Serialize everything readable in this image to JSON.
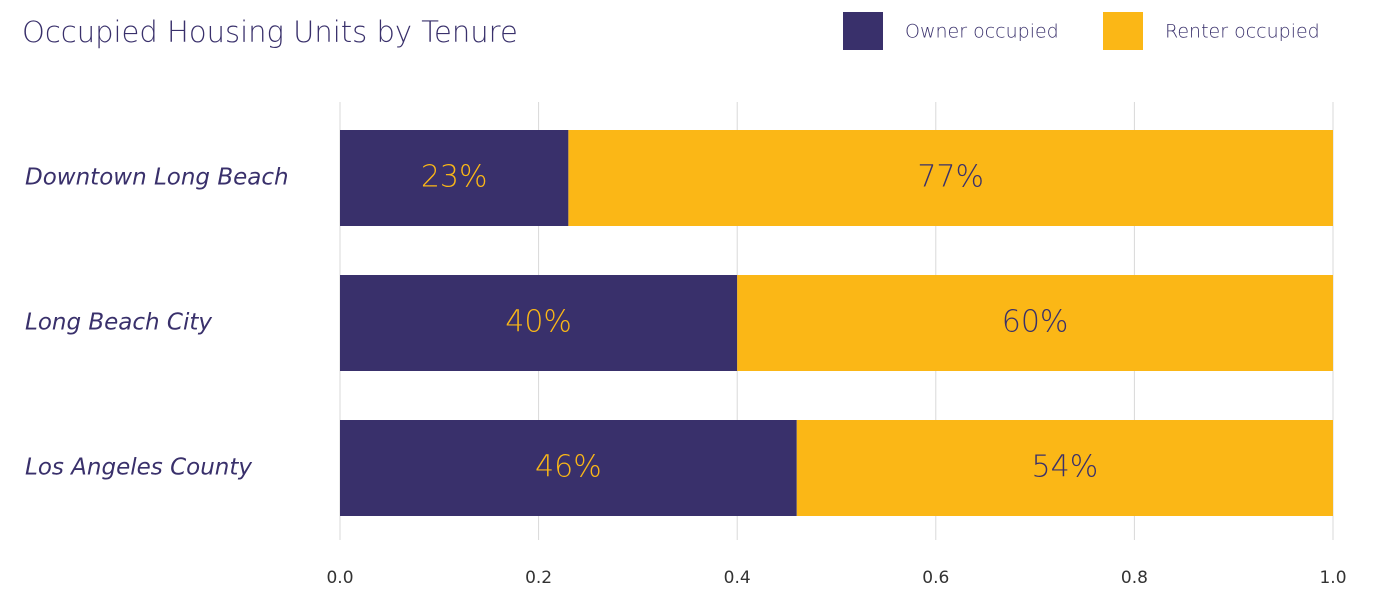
{
  "chart_data": {
    "type": "stacked-bar-horizontal",
    "title": "Occupied Housing Units by Tenure",
    "categories": [
      "Downtown Long Beach",
      "Long Beach City",
      "Los Angeles County"
    ],
    "series": [
      {
        "name": "Owner occupied",
        "color": "#39306b",
        "label_color": "#fbb716",
        "values": [
          0.23,
          0.4,
          0.46
        ],
        "value_labels": [
          "23%",
          "40%",
          "46%"
        ]
      },
      {
        "name": "Renter occupied",
        "color": "#fbb716",
        "label_color": "#39306b",
        "values": [
          0.77,
          0.6,
          0.54
        ],
        "value_labels": [
          "77%",
          "60%",
          "54%"
        ]
      }
    ],
    "xlim": [
      0,
      1
    ],
    "xticks": [
      {
        "value": 0,
        "label": "0.0"
      },
      0.2,
      0.4,
      0.6,
      0.8,
      {
        "value": 1,
        "label": "1.0"
      }
    ],
    "grid": true,
    "legend": "top-right"
  }
}
